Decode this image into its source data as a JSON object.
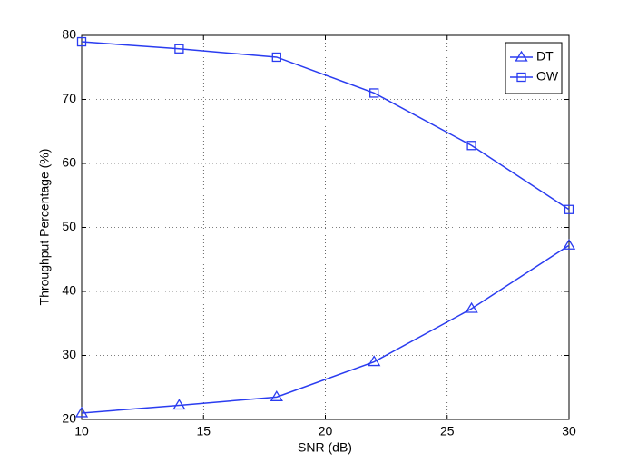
{
  "chart_data": {
    "type": "line",
    "x_label": "SNR (dB)",
    "y_label": "Throughput Percentage (%)",
    "x": [
      10,
      14,
      18,
      22,
      26,
      30
    ],
    "series": [
      {
        "name": "DT",
        "color": "#2a3cf0",
        "marker": "triangle",
        "values": [
          21,
          22.2,
          23.5,
          29,
          37.3,
          47.2
        ]
      },
      {
        "name": "OW",
        "color": "#2a3cf0",
        "marker": "square",
        "values": [
          79,
          77.9,
          76.6,
          71,
          62.8,
          52.8
        ]
      }
    ],
    "xlim": [
      10,
      30
    ],
    "xticks": [
      10,
      15,
      20,
      25,
      30
    ],
    "ylim": [
      20,
      80
    ],
    "yticks": [
      20,
      30,
      40,
      50,
      60,
      70,
      80
    ],
    "grid": true,
    "legend": "top-right"
  }
}
